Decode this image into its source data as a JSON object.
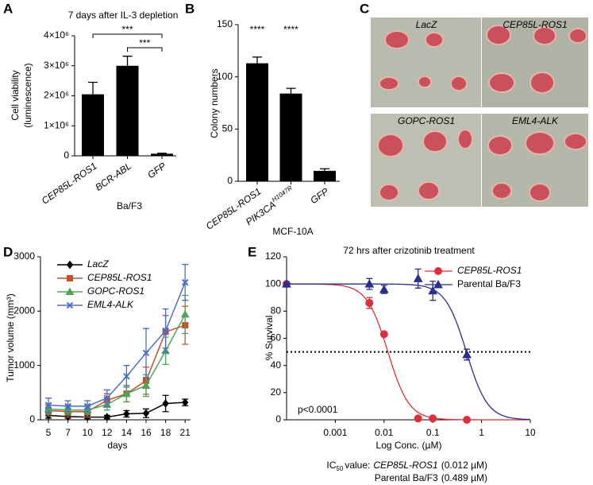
{
  "chart_data": [
    {
      "type": "bar",
      "panel": "A",
      "title": "7 days after IL-3 depletion",
      "ylabel": [
        "Cell viability",
        "(luminescence)"
      ],
      "xlabel": "Ba/F3",
      "categories": [
        "CEP85L-ROS1",
        "BCR-ABL",
        "GFP"
      ],
      "values": [
        2050000,
        3000000,
        70000
      ],
      "errors": [
        400000,
        320000,
        20000
      ],
      "color": "#000000",
      "ylim": [
        0,
        4000000
      ],
      "yticks": [
        0,
        {
          "value": 1000000,
          "label": "1×10⁶"
        },
        {
          "value": 2000000,
          "label": "2×10⁶"
        },
        {
          "value": 3000000,
          "label": "3×10⁶"
        },
        {
          "value": 4000000,
          "label": "4×10⁶"
        }
      ],
      "brackets": [
        {
          "label": "***",
          "between": [
            "CEP85L-ROS1",
            "GFP"
          ]
        },
        {
          "label": "***",
          "between": [
            "BCR-ABL",
            "GFP"
          ]
        }
      ]
    },
    {
      "type": "bar",
      "panel": "B",
      "ylabel": [
        "Colony numbers"
      ],
      "xlabel": "MCF-10A",
      "categories": [
        "CEP85L-ROS1",
        {
          "text": "PIK3CA",
          "sup": "H1047R"
        },
        "GFP"
      ],
      "values": [
        113,
        84,
        10
      ],
      "errors": [
        6,
        5,
        2
      ],
      "value_annotations": [
        "****",
        "****",
        null
      ],
      "color": "#000000",
      "ylim": [
        0,
        150
      ],
      "yticks": [
        0,
        50,
        100,
        150
      ]
    },
    {
      "type": "line",
      "panel": "D",
      "ylabel": "Tumor volume (mm³)",
      "xlabel": "days",
      "categories": [
        "5",
        "7",
        "10",
        "12",
        "14",
        "16",
        "18",
        "21"
      ],
      "ylim": [
        0,
        3000
      ],
      "yticks": [
        0,
        1000,
        2000,
        3000
      ],
      "series": [
        {
          "name": "LacZ",
          "color": "#000000",
          "marker": "diamond",
          "values": [
            80,
            60,
            50,
            50,
            110,
            120,
            300,
            320
          ],
          "errors": [
            50,
            30,
            30,
            30,
            60,
            80,
            150,
            60
          ]
        },
        {
          "name": "CEP85L-ROS1",
          "color": "#c0502a",
          "marker": "square",
          "values": [
            170,
            150,
            150,
            360,
            480,
            720,
            1620,
            1740
          ],
          "errors": [
            100,
            100,
            100,
            120,
            150,
            250,
            300,
            350
          ]
        },
        {
          "name": "GOPC-ROS1",
          "color": "#4fa35a",
          "marker": "triangle",
          "values": [
            200,
            180,
            180,
            280,
            480,
            630,
            1270,
            1940
          ],
          "errors": [
            100,
            90,
            90,
            100,
            150,
            200,
            250,
            350
          ]
        },
        {
          "name": "EML4-ALK",
          "color": "#4a6fc8",
          "marker": "x",
          "values": [
            270,
            250,
            250,
            400,
            800,
            1230,
            1640,
            2530
          ],
          "errors": [
            130,
            100,
            100,
            150,
            200,
            450,
            400,
            330
          ]
        }
      ]
    },
    {
      "type": "scatter",
      "panel": "E",
      "title": "72 hrs after crizotinib treatment",
      "ylabel": "% Survival",
      "xlabel": "Log Conc. (µM)",
      "xscale": "log",
      "xlim": [
        0.0001,
        10
      ],
      "xticks": [
        0.001,
        0.01,
        0.1,
        1,
        10
      ],
      "ylim": [
        0,
        120
      ],
      "yticks": [
        0,
        20,
        40,
        60,
        80,
        100,
        120
      ],
      "hline": 50,
      "annotation": "p<0.0001",
      "caption": {
        "text": "IC",
        "sub": "50",
        "rest": "value:"
      },
      "series": [
        {
          "name": "CEP85L-ROS1",
          "italic": true,
          "color": "#d9303a",
          "marker": "circle",
          "x": [
            0.0001,
            0.005,
            0.01,
            0.05,
            0.1,
            0.5
          ],
          "values": [
            100,
            86,
            63,
            1,
            1,
            0
          ],
          "errors": [
            1,
            4,
            1,
            0,
            0,
            0
          ],
          "ic50": 0.012,
          "ic50_label": "(0.012 µM)"
        },
        {
          "name": "Parental Ba/F3",
          "italic": false,
          "color": "#2a2f8c",
          "marker": "triangle",
          "x": [
            0.0001,
            0.005,
            0.01,
            0.05,
            0.1,
            0.5
          ],
          "values": [
            100,
            100,
            96,
            104,
            95,
            48
          ],
          "errors": [
            1,
            4,
            3,
            7,
            7,
            4
          ],
          "ic50": 0.489,
          "ic50_label": "(0.489 µM)"
        }
      ]
    }
  ],
  "photo_panel": {
    "panel": "C",
    "labels": [
      "LacZ",
      "CEP85L-ROS1",
      "GOPC-ROS1",
      "EML4-ALK"
    ]
  }
}
